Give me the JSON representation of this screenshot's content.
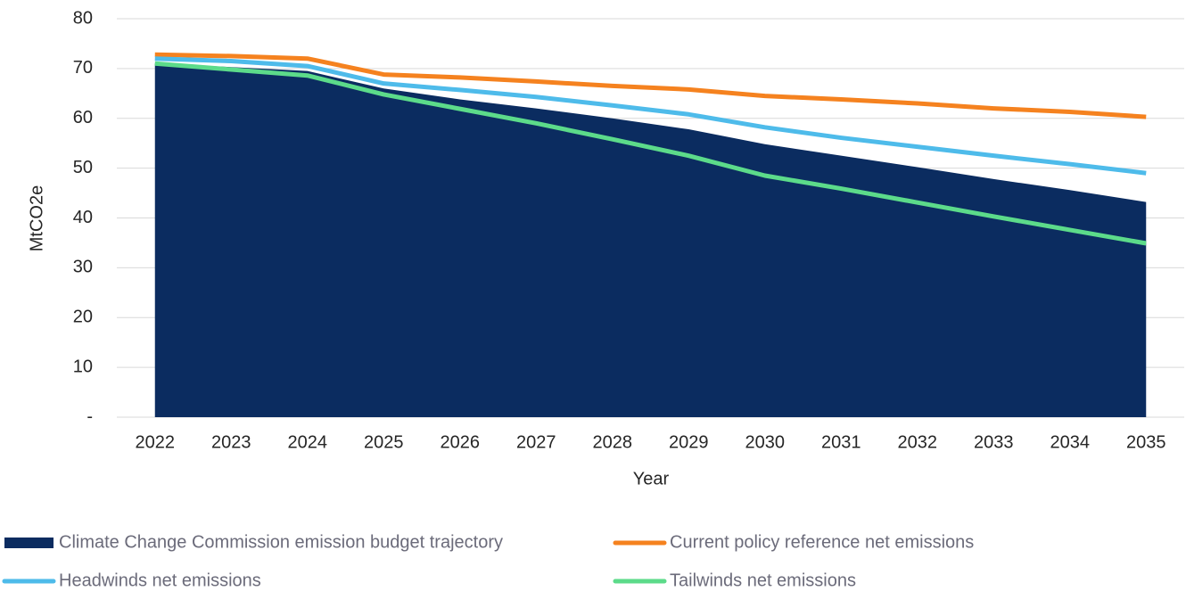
{
  "chart_data": {
    "type": "line",
    "x_label": "Year",
    "y_label": "MtCO2e",
    "categories": [
      "2022",
      "2023",
      "2024",
      "2025",
      "2026",
      "2027",
      "2028",
      "2029",
      "2030",
      "2031",
      "2032",
      "2033",
      "2034",
      "2035"
    ],
    "ylim": [
      0,
      80
    ],
    "yticks": [
      {
        "value": 0,
        "label": "-"
      },
      10,
      20,
      30,
      40,
      50,
      60,
      70,
      80
    ],
    "grid": true,
    "series": [
      {
        "name": "Climate Change Commission emission budget trajectory",
        "type": "area",
        "color": "#0b2c60",
        "values": [
          71,
          70.3,
          69.5,
          66,
          63.8,
          62,
          60,
          57.8,
          54.8,
          52.5,
          50.2,
          47.8,
          45.6,
          43.2
        ]
      },
      {
        "name": "Current policy reference net emissions",
        "type": "line",
        "color": "#f5821f",
        "values": [
          72.8,
          72.5,
          72,
          68.8,
          68.2,
          67.4,
          66.5,
          65.8,
          64.5,
          63.8,
          63,
          62,
          61.3,
          60.3
        ]
      },
      {
        "name": "Headwinds net emissions",
        "type": "line",
        "color": "#4ebbea",
        "values": [
          72,
          71.5,
          70.5,
          67,
          65.7,
          64.3,
          62.6,
          60.8,
          58.2,
          56.1,
          54.3,
          52.5,
          50.8,
          49
        ]
      },
      {
        "name": "Tailwinds net emissions",
        "type": "line",
        "color": "#5cdb8a",
        "values": [
          71,
          69.8,
          68.6,
          64.8,
          61.9,
          59,
          55.8,
          52.5,
          48.5,
          45.9,
          43.1,
          40.3,
          37.6,
          34.9
        ]
      }
    ]
  }
}
